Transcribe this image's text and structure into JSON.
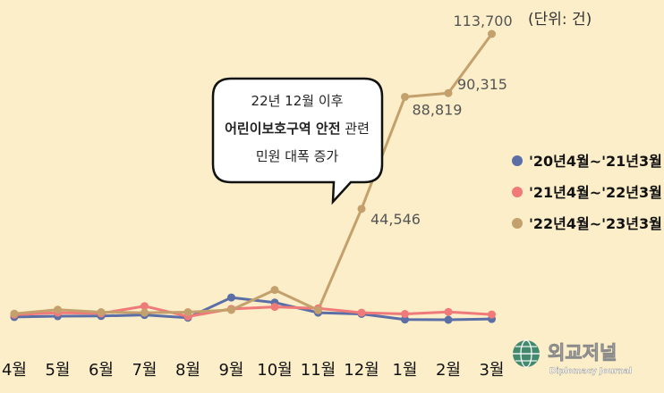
{
  "chart_data": {
    "type": "line",
    "unit_note": "(단위: 건)",
    "categories": [
      "4월",
      "5월",
      "6월",
      "7월",
      "8월",
      "9월",
      "10월",
      "11월",
      "12월",
      "1월",
      "2월",
      "3월"
    ],
    "series": [
      {
        "name": "'20년4월~'21년3월",
        "color": "#5b6fa6",
        "values": [
          1800,
          2100,
          2200,
          2600,
          1500,
          9500,
          7500,
          3500,
          3000,
          800,
          700,
          1000
        ]
      },
      {
        "name": "'21년4월~'22년3월",
        "color": "#f07a7a",
        "values": [
          2700,
          3500,
          3200,
          6100,
          2000,
          5000,
          5800,
          5200,
          3500,
          3000,
          3800,
          2800
        ]
      },
      {
        "name": "'22년4월~'23년3월",
        "color": "#c4a06c",
        "values": [
          3100,
          4700,
          3700,
          3500,
          3700,
          4600,
          12500,
          4500,
          44546,
          88819,
          90315,
          113700
        ]
      }
    ],
    "data_labels": [
      {
        "series": 2,
        "index": 8,
        "text": "44,546"
      },
      {
        "series": 2,
        "index": 9,
        "text": "88,819"
      },
      {
        "series": 2,
        "index": 10,
        "text": "90,315"
      },
      {
        "series": 2,
        "index": 11,
        "text": "113,700"
      }
    ],
    "ylim": [
      0,
      113700
    ],
    "legend_position": "right",
    "grid": false
  },
  "callout": {
    "line1": "22년 12월 이후",
    "line2_bold": "어린이보호구역 안전",
    "line2_rest": " 관련",
    "line3": "민원 대폭 증가"
  },
  "watermark": {
    "name": "외교저널",
    "sub": "Diplomacy Journal"
  },
  "colors": {
    "background": "#fbeec9",
    "axis_text": "#111111",
    "label_text": "#555555"
  }
}
